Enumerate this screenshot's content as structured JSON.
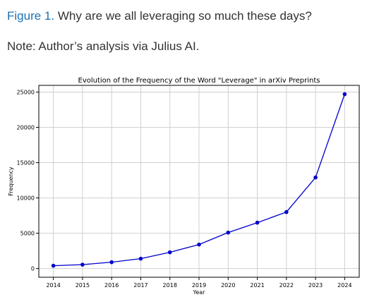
{
  "figure": {
    "label": "Figure 1.",
    "caption": " Why are we all leveraging so much these days?",
    "note": "Note: Author’s analysis via Julius AI.",
    "label_color": "#1a73b8"
  },
  "chart_data": {
    "type": "line",
    "title": "Evolution of the Frequency of the Word \"Leverage\" in arXiv Preprints",
    "xlabel": "Year",
    "ylabel": "Frequency",
    "x": [
      2014,
      2015,
      2016,
      2017,
      2018,
      2019,
      2020,
      2021,
      2022,
      2023,
      2024
    ],
    "x_tick_labels": [
      "2014",
      "2015",
      "2016",
      "2017",
      "2018",
      "2019",
      "2020",
      "2021",
      "2022",
      "2023",
      "2024"
    ],
    "y_ticks": [
      0,
      5000,
      10000,
      15000,
      20000,
      25000
    ],
    "y_tick_labels": [
      "0",
      "5000",
      "10000",
      "15000",
      "20000",
      "25000"
    ],
    "series": [
      {
        "values": [
          400,
          550,
          900,
          1400,
          2300,
          3400,
          5100,
          6500,
          8000,
          12900,
          24700
        ],
        "color": "#0000cc",
        "marker": "circle"
      }
    ],
    "xlim": [
      2013.5,
      2024.5
    ],
    "ylim": [
      -1235,
      25950
    ],
    "grid": true,
    "legend": "none"
  }
}
